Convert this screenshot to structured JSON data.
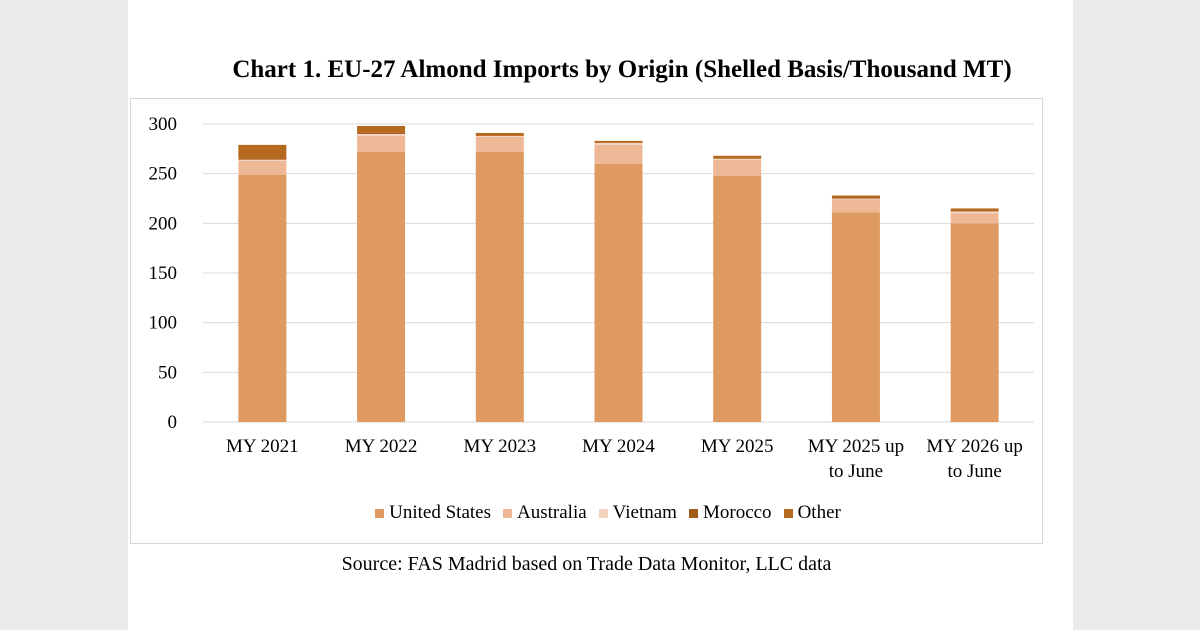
{
  "title": "Chart 1. EU-27 Almond Imports by Origin (Shelled Basis/Thousand MT)",
  "source": "Source: FAS Madrid based on Trade Data Monitor, LLC data",
  "chart_data": {
    "type": "bar",
    "stacked": true,
    "title": "Chart 1. EU-27 Almond Imports by Origin (Shelled Basis/Thousand MT)",
    "xlabel": "",
    "ylabel": "",
    "ylim": [
      0,
      300
    ],
    "yticks": [
      0,
      50,
      100,
      150,
      200,
      250,
      300
    ],
    "grid": true,
    "legend_position": "bottom",
    "categories": [
      [
        "MY 2021"
      ],
      [
        "MY 2022"
      ],
      [
        "MY 2023"
      ],
      [
        "MY 2024"
      ],
      [
        "MY 2025"
      ],
      [
        "MY 2025 up",
        "to June"
      ],
      [
        "MY 2026 up",
        "to June"
      ]
    ],
    "series": [
      {
        "name": "United States",
        "color": "#df9a62",
        "values": [
          249,
          272,
          272,
          260,
          248,
          211,
          200
        ]
      },
      {
        "name": "Australia",
        "color": "#eeb896",
        "values": [
          14,
          16,
          15,
          19,
          16,
          13,
          10
        ]
      },
      {
        "name": "Vietnam",
        "color": "#f3d2c0",
        "values": [
          1,
          2,
          1,
          2,
          1,
          1,
          2
        ]
      },
      {
        "name": "Morocco",
        "color": "#a05a1a",
        "values": [
          0,
          1,
          0,
          0,
          0,
          1,
          1
        ]
      },
      {
        "name": "Other",
        "color": "#b66a1f",
        "values": [
          15,
          7,
          3,
          2,
          3,
          2,
          2
        ]
      }
    ]
  }
}
